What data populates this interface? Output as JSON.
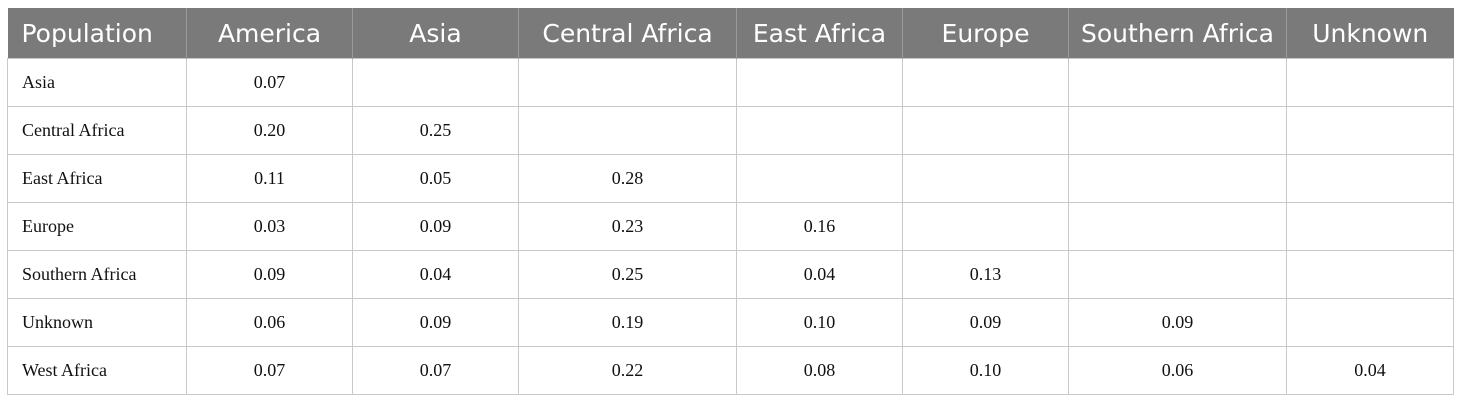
{
  "table": {
    "headers": [
      "Population",
      "America",
      "Asia",
      "Central Africa",
      "East Africa",
      "Europe",
      "Southern Africa",
      "Unknown"
    ],
    "rows": [
      [
        "Asia",
        "0.07",
        "",
        "",
        "",
        "",
        "",
        ""
      ],
      [
        "Central Africa",
        "0.20",
        "0.25",
        "",
        "",
        "",
        "",
        ""
      ],
      [
        "East Africa",
        "0.11",
        "0.05",
        "0.28",
        "",
        "",
        "",
        ""
      ],
      [
        "Europe",
        "0.03",
        "0.09",
        "0.23",
        "0.16",
        "",
        "",
        ""
      ],
      [
        "Southern Africa",
        "0.09",
        "0.04",
        "0.25",
        "0.04",
        "0.13",
        "",
        ""
      ],
      [
        "Unknown",
        "0.06",
        "0.09",
        "0.19",
        "0.10",
        "0.09",
        "0.09",
        ""
      ],
      [
        "West Africa",
        "0.07",
        "0.07",
        "0.22",
        "0.08",
        "0.10",
        "0.06",
        "0.04"
      ]
    ]
  }
}
